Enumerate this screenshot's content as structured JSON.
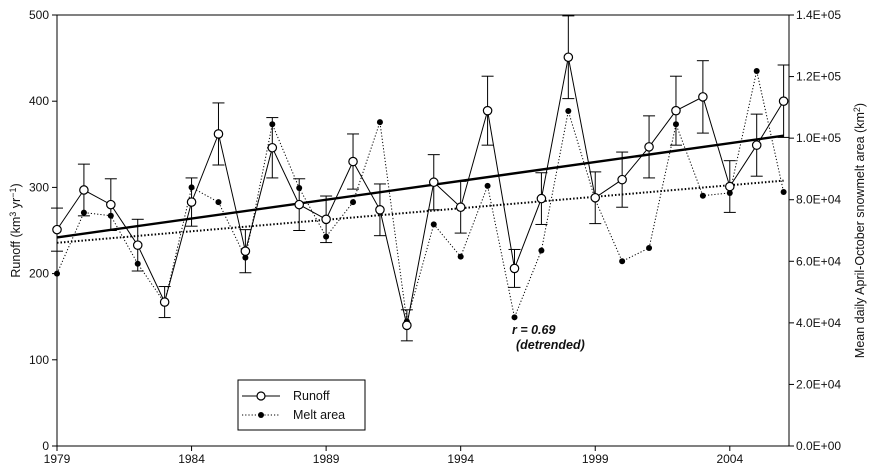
{
  "chart_data": {
    "type": "line",
    "x": [
      1979,
      1980,
      1981,
      1982,
      1983,
      1984,
      1985,
      1986,
      1987,
      1988,
      1989,
      1990,
      1991,
      1992,
      1993,
      1994,
      1995,
      1996,
      1997,
      1998,
      1999,
      2000,
      2001,
      2002,
      2003,
      2004,
      2005,
      2006
    ],
    "x_ticks": [
      "1979",
      "1984",
      "1989",
      "1994",
      "1999",
      "2004"
    ],
    "xlim": [
      1979,
      2006.2
    ],
    "ylabel_left_parts": [
      "Runoff (km",
      "3",
      " yr",
      "−1",
      ")"
    ],
    "ylabel_right_parts": [
      "Mean daily April-October snowmelt area (km",
      "2",
      ")"
    ],
    "ylim_left": [
      0,
      500
    ],
    "left_ticks": [
      "0",
      "100",
      "200",
      "300",
      "400",
      "500"
    ],
    "ylim_right": [
      0,
      140000
    ],
    "right_ticks": [
      "0.0E+00",
      "2.0E+04",
      "4.0E+04",
      "6.0E+04",
      "8.0E+04",
      "1.0E+05",
      "1.2E+05",
      "1.4E+05"
    ],
    "series": [
      {
        "name": "Runoff",
        "axis": "left",
        "style": "solid-open-circle",
        "values": [
          251,
          297,
          280,
          233,
          167,
          283,
          362,
          226,
          346,
          280,
          263,
          330,
          274,
          140,
          306,
          277,
          389,
          206,
          287,
          451,
          288,
          309,
          347,
          389,
          405,
          301,
          349,
          400
        ],
        "error": [
          25,
          30,
          30,
          30,
          18,
          28,
          36,
          25,
          35,
          30,
          27,
          32,
          30,
          18,
          32,
          30,
          40,
          22,
          30,
          48,
          30,
          32,
          36,
          40,
          42,
          30,
          36,
          42
        ],
        "trend": [
          242,
          360
        ]
      },
      {
        "name": "Melt area",
        "axis": "right",
        "style": "dotted-filled-dot",
        "values": [
          56000,
          75800,
          74800,
          59200,
          46500,
          84000,
          79200,
          61200,
          104500,
          83800,
          68000,
          79200,
          105200,
          40500,
          72000,
          61500,
          84500,
          41800,
          63500,
          108800,
          80000,
          60000,
          64300,
          104500,
          81300,
          82200,
          121800,
          82500
        ],
        "trend": [
          66000,
          86200
        ]
      }
    ],
    "annotations": [
      "r = 0.69",
      "(detrended)"
    ],
    "legend": {
      "placement": "bottom-center",
      "entries": [
        "Runoff",
        "Melt area"
      ]
    }
  }
}
